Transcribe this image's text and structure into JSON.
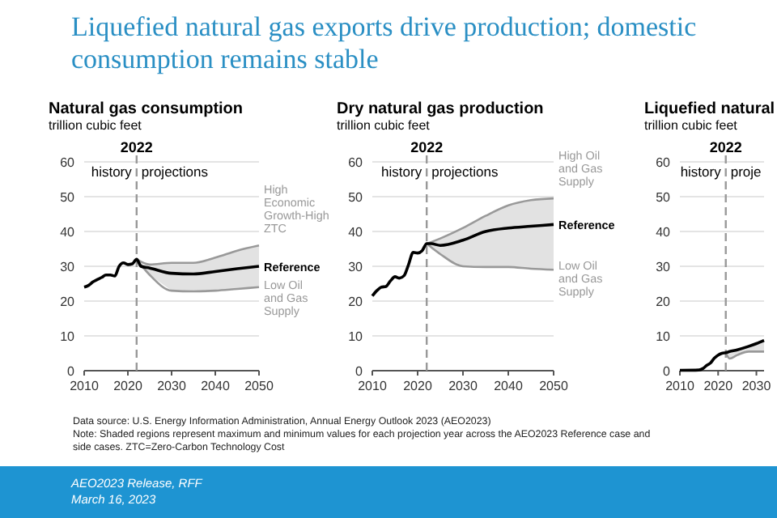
{
  "chart_data": [
    {
      "type": "other",
      "title": "Liquefied natural gas exports drive production; domestic consumption remains stable",
      "annotations": [
        "Data source: U.S. Energy Information Administration, Annual Energy Outlook 2023 (AEO2023)",
        "Note: Shaded regions represent maximum and minimum values for each projection year across the AEO2023 Reference case and side cases. ZTC=Zero-Carbon Technology Cost",
        "AEO2023 Release, RFF",
        "March 16, 2023"
      ]
    },
    {
      "type": "line",
      "title": "Natural gas consumption",
      "ylabel": "trillion cubic feet",
      "xlim": [
        2010,
        2050
      ],
      "xticks": [
        2010,
        2020,
        2030,
        2040,
        2050
      ],
      "ylim": [
        0,
        60
      ],
      "yticks": [
        0,
        10,
        20,
        30,
        40,
        50,
        60
      ],
      "grid": "y",
      "ref_lines": [
        {
          "axis": "x",
          "value": 2022,
          "label": "2022",
          "line_style": "dashed"
        }
      ],
      "annotations": [
        "history",
        "projections"
      ],
      "series": [
        {
          "name": "Reference",
          "color": "#000000",
          "x": [
            2010,
            2011,
            2012,
            2013,
            2014,
            2015,
            2016,
            2017,
            2018,
            2019,
            2020,
            2021,
            2022,
            2023,
            2025,
            2030,
            2035,
            2040,
            2045,
            2050
          ],
          "values": [
            24,
            24.5,
            25.5,
            26.2,
            26.8,
            27.5,
            27.5,
            27.2,
            30,
            31,
            30.5,
            30.7,
            32,
            30,
            29.5,
            28,
            27.8,
            28.5,
            29.3,
            30
          ],
          "lower": [
            null,
            null,
            null,
            null,
            null,
            null,
            null,
            null,
            null,
            null,
            null,
            null,
            32,
            30,
            27.5,
            23,
            22.8,
            23,
            23.5,
            24
          ],
          "upper": [
            null,
            null,
            null,
            null,
            null,
            null,
            null,
            null,
            null,
            null,
            null,
            null,
            32,
            30.5,
            30.5,
            31,
            31,
            32.5,
            34.5,
            36
          ]
        },
        {
          "name": "High Economic Growth-High ZTC",
          "color": "#999999",
          "x": [
            2022,
            2025,
            2030,
            2035,
            2040,
            2045,
            2050
          ],
          "values": [
            32,
            30.5,
            31,
            31,
            32.5,
            34.5,
            36
          ]
        },
        {
          "name": "Low Oil and Gas Supply",
          "color": "#999999",
          "x": [
            2022,
            2025,
            2030,
            2035,
            2040,
            2045,
            2050
          ],
          "values": [
            32,
            27.5,
            23,
            22.8,
            23,
            23.5,
            24
          ]
        }
      ]
    },
    {
      "type": "line",
      "title": "Dry natural gas production",
      "ylabel": "trillion cubic feet",
      "xlim": [
        2010,
        2050
      ],
      "xticks": [
        2010,
        2020,
        2030,
        2040,
        2050
      ],
      "ylim": [
        0,
        60
      ],
      "yticks": [
        0,
        10,
        20,
        30,
        40,
        50,
        60
      ],
      "grid": "y",
      "ref_lines": [
        {
          "axis": "x",
          "value": 2022,
          "label": "2022",
          "line_style": "dashed"
        }
      ],
      "annotations": [
        "history",
        "projections"
      ],
      "series": [
        {
          "name": "Reference",
          "color": "#000000",
          "x": [
            2010,
            2011,
            2012,
            2013,
            2014,
            2015,
            2016,
            2017,
            2018,
            2019,
            2020,
            2021,
            2022,
            2023,
            2025,
            2030,
            2035,
            2040,
            2045,
            2050
          ],
          "values": [
            21.5,
            23,
            24,
            24.2,
            25.8,
            27,
            26.6,
            27.3,
            30.5,
            34,
            33.8,
            34.5,
            36.5,
            36.5,
            36,
            37.5,
            40,
            41,
            41.5,
            42
          ],
          "lower": [
            null,
            null,
            null,
            null,
            null,
            null,
            null,
            null,
            null,
            null,
            null,
            null,
            36.5,
            35,
            33.5,
            30,
            29.8,
            29.8,
            29.3,
            29
          ],
          "upper": [
            null,
            null,
            null,
            null,
            null,
            null,
            null,
            null,
            null,
            null,
            null,
            null,
            36.5,
            37,
            38,
            41,
            44.5,
            47.5,
            49,
            49.5
          ]
        },
        {
          "name": "High Oil and Gas Supply",
          "color": "#999999",
          "x": [
            2022,
            2025,
            2030,
            2035,
            2040,
            2045,
            2050
          ],
          "values": [
            36.5,
            38,
            41,
            44.5,
            47.5,
            49,
            49.5
          ]
        },
        {
          "name": "Low Oil and Gas Supply",
          "color": "#999999",
          "x": [
            2022,
            2025,
            2030,
            2035,
            2040,
            2045,
            2050
          ],
          "values": [
            36.5,
            33.5,
            30,
            29.8,
            29.8,
            29.3,
            29
          ]
        }
      ]
    },
    {
      "type": "line",
      "title": "Liquefied natural",
      "ylabel": "trillion cubic feet",
      "xlim": [
        2010,
        2032
      ],
      "xticks": [
        2010,
        2020,
        2030
      ],
      "ylim": [
        0,
        60
      ],
      "yticks": [
        0,
        10,
        20,
        30,
        40,
        50,
        60
      ],
      "grid": "y",
      "ref_lines": [
        {
          "axis": "x",
          "value": 2022,
          "label": "2022",
          "line_style": "dashed"
        }
      ],
      "annotations": [
        "history",
        "proje"
      ],
      "series": [
        {
          "color": "#000000",
          "x": [
            2010,
            2015,
            2016,
            2017,
            2018,
            2019,
            2020,
            2021,
            2022,
            2023,
            2025,
            2028,
            2030,
            2032
          ],
          "values": [
            0.1,
            0.2,
            0.6,
            1.5,
            2.2,
            3.6,
            4.5,
            5,
            5.2,
            5.5,
            6,
            7,
            7.8,
            8.7
          ],
          "lower": [
            null,
            null,
            null,
            null,
            null,
            null,
            null,
            null,
            5.2,
            3.5,
            4.5,
            5.5,
            5.5,
            5.5
          ],
          "upper": [
            null,
            null,
            null,
            null,
            null,
            null,
            null,
            null,
            5.2,
            5.6,
            6.2,
            7.3,
            8.2,
            9.2
          ]
        },
        {
          "color": "#999999",
          "x": [
            2022,
            2023,
            2025,
            2028,
            2030,
            2032
          ],
          "values": [
            5.2,
            3.5,
            4.5,
            5.5,
            5.5,
            5.5
          ]
        }
      ]
    }
  ]
}
